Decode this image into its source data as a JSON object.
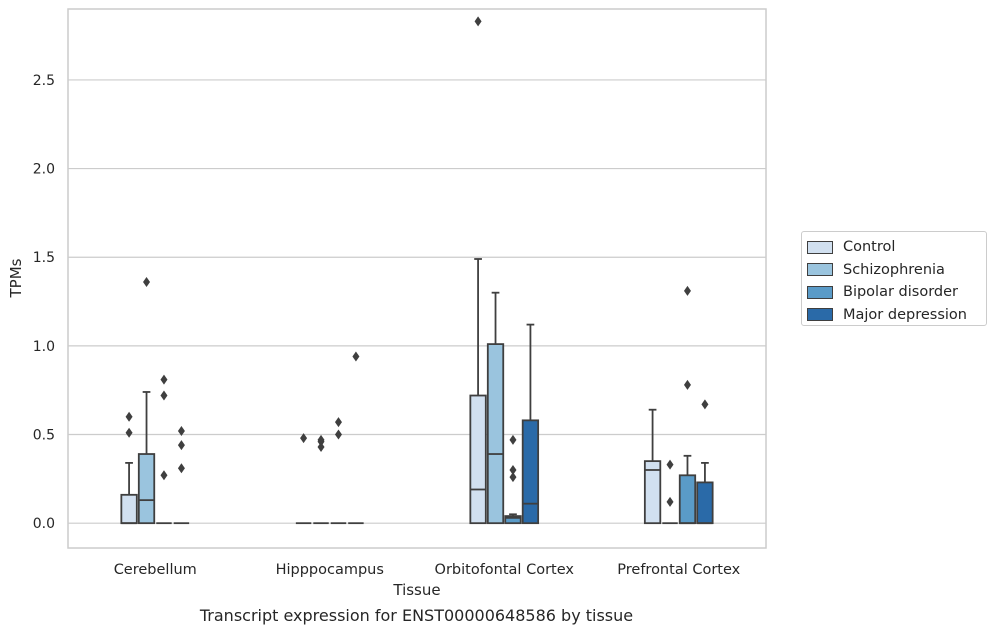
{
  "caption": "Transcript expression for ENST00000648586 by tissue",
  "chart_data": {
    "type": "box",
    "xlabel": "Tissue",
    "ylabel": "TPMs",
    "ylim": [
      -0.14,
      2.9
    ],
    "yticks": [
      "0.0",
      "0.5",
      "1.0",
      "1.5",
      "2.0",
      "2.5"
    ],
    "grid": true,
    "legend_position": "right",
    "categories": [
      "Cerebellum",
      "Hipppocampus",
      "Orbitofontal Cortex",
      "Prefrontal Cortex"
    ],
    "series": [
      {
        "name": "Control",
        "color": "#d1e0f0",
        "boxes": [
          {
            "min": 0,
            "q1": 0,
            "median": 0,
            "q3": 0.16,
            "max": 0.34,
            "outliers": [
              0.51,
              0.6
            ]
          },
          {
            "min": 0,
            "q1": 0,
            "median": 0,
            "q3": 0,
            "max": 0,
            "outliers": [
              0.48
            ]
          },
          {
            "min": 0,
            "q1": 0,
            "median": 0.19,
            "q3": 0.72,
            "max": 1.49,
            "outliers": [
              2.83
            ]
          },
          {
            "min": 0,
            "q1": 0,
            "median": 0.3,
            "q3": 0.35,
            "max": 0.64,
            "outliers": []
          }
        ]
      },
      {
        "name": "Schizophrenia",
        "color": "#9ac4de",
        "boxes": [
          {
            "min": 0,
            "q1": 0,
            "median": 0.13,
            "q3": 0.39,
            "max": 0.74,
            "outliers": [
              1.36
            ]
          },
          {
            "min": 0,
            "q1": 0,
            "median": 0,
            "q3": 0,
            "max": 0,
            "outliers": [
              0.43,
              0.46,
              0.47
            ]
          },
          {
            "min": 0,
            "q1": 0,
            "median": 0.39,
            "q3": 1.01,
            "max": 1.3,
            "outliers": []
          },
          {
            "min": 0,
            "q1": 0,
            "median": 0,
            "q3": 0,
            "max": 0,
            "outliers": [
              0.12,
              0.33
            ]
          }
        ]
      },
      {
        "name": "Bipolar disorder",
        "color": "#5a9bc8",
        "boxes": [
          {
            "min": 0,
            "q1": 0,
            "median": 0,
            "q3": 0,
            "max": 0,
            "outliers": [
              0.27,
              0.72,
              0.81
            ]
          },
          {
            "min": 0,
            "q1": 0,
            "median": 0,
            "q3": 0,
            "max": 0,
            "outliers": [
              0.5,
              0.57
            ]
          },
          {
            "min": 0,
            "q1": 0,
            "median": 0.03,
            "q3": 0.04,
            "max": 0.05,
            "outliers": [
              0.26,
              0.3,
              0.47
            ]
          },
          {
            "min": 0,
            "q1": 0,
            "median": 0,
            "q3": 0.27,
            "max": 0.38,
            "outliers": [
              0.78,
              1.31
            ]
          }
        ]
      },
      {
        "name": "Major depression",
        "color": "#2a6aa8",
        "boxes": [
          {
            "min": 0,
            "q1": 0,
            "median": 0,
            "q3": 0,
            "max": 0,
            "outliers": [
              0.31,
              0.44,
              0.52
            ]
          },
          {
            "min": 0,
            "q1": 0,
            "median": 0,
            "q3": 0,
            "max": 0,
            "outliers": [
              0.94
            ]
          },
          {
            "min": 0,
            "q1": 0,
            "median": 0.11,
            "q3": 0.58,
            "max": 1.12,
            "outliers": []
          },
          {
            "min": 0,
            "q1": 0,
            "median": 0,
            "q3": 0.23,
            "max": 0.34,
            "outliers": [
              0.67
            ]
          }
        ]
      }
    ]
  }
}
